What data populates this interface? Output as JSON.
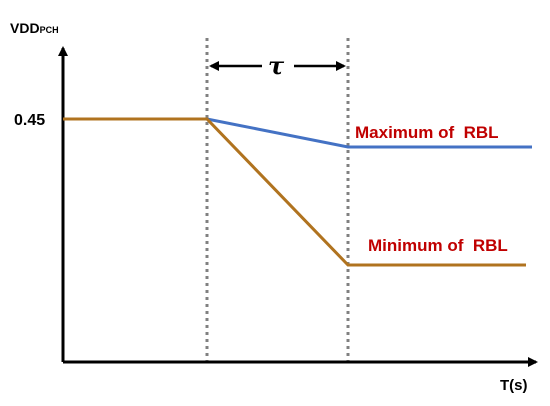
{
  "axis": {
    "y_label": "VDD",
    "y_label_sub": "PCH",
    "y_tick": "0.45",
    "x_label": "T(s)"
  },
  "interval": {
    "label": "τ"
  },
  "curves": [
    {
      "label": "Maximum of  RBL"
    },
    {
      "label": "Minimum of  RBL"
    }
  ]
}
